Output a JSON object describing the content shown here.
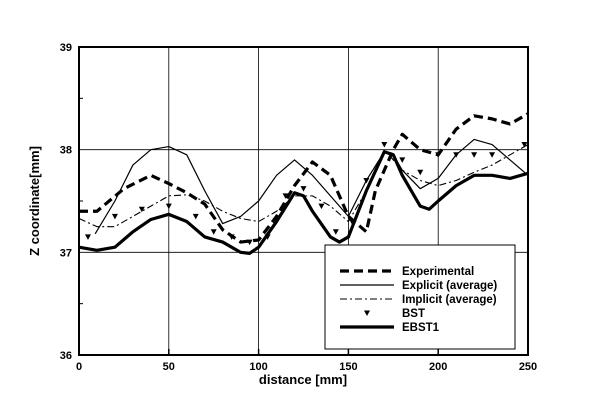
{
  "chart_data": {
    "type": "line",
    "title": "",
    "xlabel": "distance [mm]",
    "ylabel": "Z coordinate[mm]",
    "xlim": [
      0,
      250
    ],
    "ylim": [
      36,
      39
    ],
    "xticks": [
      "0",
      "50",
      "100",
      "150",
      "200",
      "250"
    ],
    "yticks": [
      "36",
      "37",
      "38",
      "39"
    ],
    "grid": true,
    "legend_position": "bottom-right",
    "series": [
      {
        "name": "Experimental",
        "style": "dashed",
        "color": "#000000",
        "x": [
          0,
          10,
          25,
          40,
          50,
          60,
          70,
          80,
          90,
          100,
          110,
          120,
          130,
          140,
          150,
          160,
          165,
          175,
          180,
          190,
          200,
          210,
          220,
          230,
          240,
          250
        ],
        "y": [
          37.4,
          37.4,
          37.62,
          37.75,
          37.67,
          37.58,
          37.47,
          37.22,
          37.1,
          37.12,
          37.35,
          37.65,
          37.88,
          37.75,
          37.35,
          37.2,
          37.6,
          38.0,
          38.15,
          38.0,
          37.95,
          38.2,
          38.33,
          38.3,
          38.25,
          38.35
        ]
      },
      {
        "name": "Explicit (average)",
        "style": "solid-thin",
        "color": "#000000",
        "x": [
          9,
          20,
          30,
          40,
          50,
          60,
          70,
          80,
          90,
          100,
          110,
          120,
          130,
          140,
          150,
          160,
          170,
          175,
          180,
          190,
          200,
          210,
          220,
          230,
          240,
          250
        ],
        "y": [
          37.18,
          37.5,
          37.85,
          38.0,
          38.03,
          37.95,
          37.6,
          37.28,
          37.35,
          37.5,
          37.75,
          37.9,
          37.75,
          37.55,
          37.35,
          37.7,
          37.98,
          37.95,
          37.8,
          37.62,
          37.72,
          37.95,
          38.1,
          38.05,
          37.9,
          37.75
        ]
      },
      {
        "name": "Implicit (average)",
        "style": "dash-dot",
        "color": "#000000",
        "x": [
          0,
          10,
          20,
          30,
          40,
          50,
          60,
          70,
          80,
          90,
          100,
          110,
          120,
          130,
          140,
          150,
          160,
          170,
          180,
          190,
          200,
          210,
          220,
          230,
          240,
          250
        ],
        "y": [
          37.33,
          37.25,
          37.25,
          37.35,
          37.45,
          37.55,
          37.56,
          37.5,
          37.4,
          37.33,
          37.3,
          37.4,
          37.55,
          37.55,
          37.45,
          37.3,
          37.6,
          38.0,
          37.8,
          37.7,
          37.65,
          37.7,
          37.78,
          37.85,
          37.95,
          38.05
        ]
      },
      {
        "name": "BST",
        "style": "triangle-markers",
        "color": "#000000",
        "x": [
          5,
          20,
          35,
          50,
          65,
          75,
          85,
          95,
          105,
          115,
          125,
          135,
          143,
          152,
          160,
          170,
          180,
          190,
          200,
          210,
          220,
          230,
          248
        ],
        "y": [
          37.15,
          37.35,
          37.42,
          37.45,
          37.35,
          37.2,
          37.15,
          37.1,
          37.15,
          37.55,
          37.62,
          37.45,
          37.2,
          37.3,
          37.7,
          38.05,
          37.9,
          37.78,
          37.95,
          37.95,
          37.95,
          37.95,
          38.05
        ]
      },
      {
        "name": "EBST1",
        "style": "solid-thick",
        "color": "#000000",
        "x": [
          0,
          10,
          20,
          30,
          40,
          50,
          60,
          70,
          80,
          90,
          95,
          100,
          110,
          120,
          125,
          130,
          140,
          145,
          150,
          160,
          170,
          175,
          180,
          190,
          195,
          200,
          210,
          220,
          230,
          240,
          250
        ],
        "y": [
          37.05,
          37.02,
          37.05,
          37.2,
          37.32,
          37.37,
          37.3,
          37.15,
          37.1,
          37.0,
          36.99,
          37.05,
          37.3,
          37.58,
          37.55,
          37.4,
          37.15,
          37.1,
          37.15,
          37.6,
          37.98,
          37.95,
          37.75,
          37.45,
          37.42,
          37.5,
          37.65,
          37.75,
          37.75,
          37.72,
          37.77
        ]
      }
    ]
  }
}
